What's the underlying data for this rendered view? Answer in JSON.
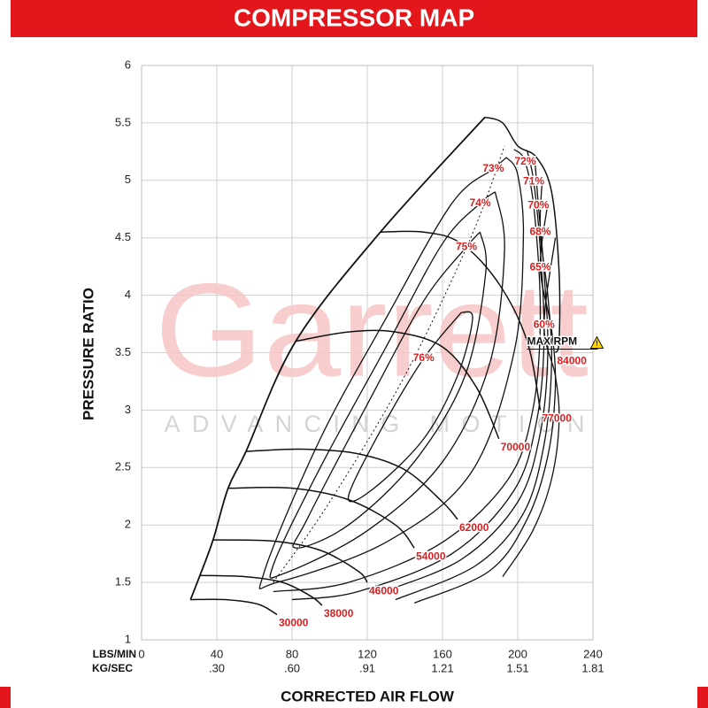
{
  "chart_data": {
    "type": "compressor-map",
    "title": "COMPRESSOR MAP",
    "x_label": "CORRECTED AIR FLOW",
    "y_label": "PRESSURE RATIO",
    "x_unit_label": "LBS/MIN",
    "x2_unit_label": "KG/SEC",
    "watermark": "Garrett",
    "watermark_tagline": "ADVANCING MOTION",
    "max_rpm_label": "MAX RPM",
    "xlim": [
      0,
      240
    ],
    "ylim": [
      1,
      6
    ],
    "xticks": [
      0,
      40,
      80,
      120,
      160,
      200,
      240
    ],
    "x2ticks": [
      {
        "value": 40,
        "label": ".30"
      },
      {
        "value": 80,
        "label": ".60"
      },
      {
        "value": 120,
        "label": ".91"
      },
      {
        "value": 160,
        "label": "1.21"
      },
      {
        "value": 200,
        "label": "1.51"
      },
      {
        "value": 240,
        "label": "1.81"
      }
    ],
    "yticks": [
      1,
      1.5,
      2,
      2.5,
      3,
      3.5,
      4,
      4.5,
      5,
      5.5,
      6
    ],
    "grid": true,
    "line_color": "#111111",
    "label_color": "#d71f1f",
    "surge_line": {
      "x": [
        26,
        31,
        38,
        46,
        55.5,
        82,
        127,
        182.6
      ],
      "y": [
        1.35,
        1.56,
        1.87,
        2.32,
        2.64,
        3.6,
        4.55,
        5.55
      ]
    },
    "efficiency_peak_line": {
      "x": [
        70,
        100,
        140,
        175,
        193
      ],
      "y": [
        1.5,
        2.2,
        3.3,
        4.5,
        5.3
      ]
    },
    "speed_lines": [
      {
        "name": "30000",
        "x": [
          26,
          45,
          62,
          72
        ],
        "y": [
          1.35,
          1.35,
          1.31,
          1.22
        ]
      },
      {
        "name": "38000",
        "x": [
          31,
          55,
          75,
          90,
          96
        ],
        "y": [
          1.56,
          1.55,
          1.5,
          1.38,
          1.3
        ]
      },
      {
        "name": "46000",
        "x": [
          38,
          70,
          95,
          115,
          120
        ],
        "y": [
          1.87,
          1.86,
          1.78,
          1.6,
          1.5
        ]
      },
      {
        "name": "54000",
        "x": [
          46,
          80,
          110,
          135,
          145
        ],
        "y": [
          2.32,
          2.32,
          2.22,
          2.0,
          1.8
        ]
      },
      {
        "name": "62000",
        "x": [
          55.5,
          85,
          115,
          140,
          160,
          168
        ],
        "y": [
          2.64,
          2.66,
          2.62,
          2.48,
          2.2,
          2.05
        ]
      },
      {
        "name": "70000",
        "x": [
          82,
          110,
          135,
          160,
          178,
          190
        ],
        "y": [
          3.6,
          3.68,
          3.68,
          3.55,
          3.2,
          2.75
        ]
      },
      {
        "name": "77000",
        "x": [
          127,
          150,
          170,
          190,
          205,
          212
        ],
        "y": [
          4.55,
          4.55,
          4.45,
          4.1,
          3.6,
          3.0
        ]
      },
      {
        "name": "84000",
        "x": [
          182.6,
          192,
          200,
          210,
          218,
          222,
          222,
          220
        ],
        "y": [
          5.55,
          5.5,
          5.3,
          5.2,
          4.9,
          4.2,
          3.6,
          3.5
        ]
      }
    ],
    "efficiency_islands": [
      {
        "name": "76%",
        "x": [
          170,
          150,
          128,
          110,
          122,
          150,
          168,
          176,
          170
        ],
        "y": [
          3.85,
          3.45,
          2.85,
          2.25,
          2.3,
          2.75,
          3.3,
          3.8,
          3.85
        ]
      },
      {
        "name": "75%",
        "x": [
          180,
          172.7,
          150,
          120,
          88,
          82,
          110,
          145,
          172,
          183,
          180
        ],
        "y": [
          4.55,
          4.42,
          3.95,
          3.05,
          2.05,
          1.8,
          2.0,
          2.55,
          3.3,
          4.2,
          4.55
        ]
      },
      {
        "name": "74%",
        "x": [
          188,
          180,
          160,
          130,
          95,
          70,
          76,
          120,
          160,
          185,
          193,
          188
        ],
        "y": [
          4.9,
          4.8,
          4.45,
          3.55,
          2.5,
          1.65,
          1.58,
          1.95,
          2.55,
          3.4,
          4.4,
          4.9
        ]
      },
      {
        "name": "73%",
        "x": [
          194,
          187,
          165,
          130,
          95,
          65,
          72,
          130,
          175,
          198,
          203,
          200,
          194
        ],
        "y": [
          5.2,
          5.1,
          4.8,
          3.8,
          2.75,
          1.58,
          1.5,
          1.85,
          2.45,
          3.5,
          4.5,
          5.05,
          5.2
        ]
      },
      {
        "name": "72%",
        "x": [
          198,
          204,
          209,
          212,
          208,
          195,
          160,
          110,
          70
        ],
        "y": [
          5.27,
          5.16,
          4.7,
          3.8,
          3.0,
          2.4,
          1.85,
          1.5,
          1.42
        ]
      },
      {
        "name": "71%",
        "x": [
          205,
          208.5,
          212,
          214,
          210,
          198,
          165,
          115,
          80
        ],
        "y": [
          5.26,
          4.99,
          4.4,
          3.6,
          2.9,
          2.3,
          1.75,
          1.42,
          1.35
        ]
      },
      {
        "name": "70%",
        "x": [
          209,
          211,
          214,
          216,
          212,
          200,
          170,
          125
        ],
        "y": [
          5.2,
          4.78,
          4.2,
          3.5,
          2.8,
          2.2,
          1.7,
          1.4
        ]
      },
      {
        "name": "68%",
        "x": [
          213,
          212,
          216,
          218,
          214,
          203,
          178,
          135
        ],
        "y": [
          5.0,
          4.55,
          4.0,
          3.4,
          2.7,
          2.1,
          1.65,
          1.35
        ]
      },
      {
        "name": "65%",
        "x": [
          216,
          212,
          218,
          220,
          216,
          205,
          185,
          145
        ],
        "y": [
          4.8,
          4.24,
          3.7,
          3.2,
          2.6,
          2.05,
          1.6,
          1.32
        ]
      },
      {
        "name": "60%",
        "x": [
          220,
          214,
          220,
          222,
          218,
          208,
          192
        ],
        "y": [
          4.5,
          3.74,
          3.3,
          2.9,
          2.4,
          1.95,
          1.55
        ]
      }
    ]
  }
}
